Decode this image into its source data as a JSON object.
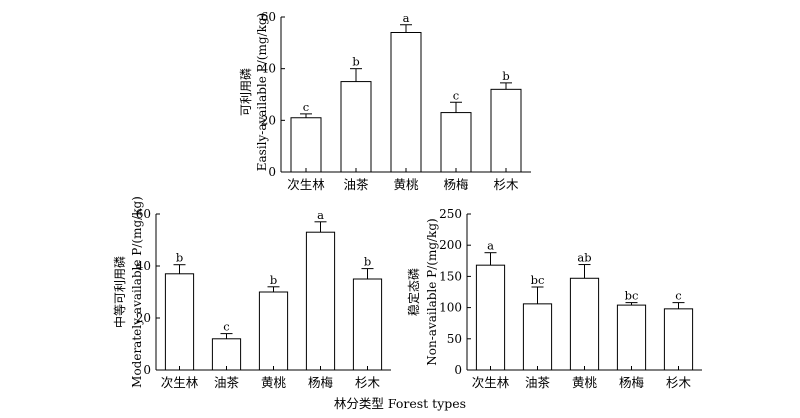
{
  "chart_data": [
    {
      "type": "bar",
      "categories": [
        "次生林",
        "油茶",
        "黄桃",
        "杨梅",
        "杉木"
      ],
      "values": [
        21,
        35,
        54,
        23,
        32
      ],
      "errors": [
        1.5,
        5,
        3,
        4,
        2.5
      ],
      "significance": [
        "c",
        "b",
        "a",
        "c",
        "b"
      ],
      "ylabel_cn": "可利用磷",
      "ylabel_en": "Easily-available P/(mg/kg)",
      "yticks": [
        0,
        20,
        40,
        60
      ],
      "ylim": [
        0,
        60
      ]
    },
    {
      "type": "bar",
      "categories": [
        "次生林",
        "油茶",
        "黄桃",
        "杨梅",
        "杉木"
      ],
      "values": [
        37,
        12,
        30,
        53,
        35
      ],
      "errors": [
        3.5,
        2,
        2,
        4,
        4
      ],
      "significance": [
        "b",
        "c",
        "b",
        "a",
        "b"
      ],
      "ylabel_cn": "中等可利用磷",
      "ylabel_en": "Moderately-available P/(mg/kg)",
      "yticks": [
        0,
        20,
        40,
        60
      ],
      "ylim": [
        0,
        60
      ]
    },
    {
      "type": "bar",
      "categories": [
        "次生林",
        "油茶",
        "黄桃",
        "杨梅",
        "杉木"
      ],
      "values": [
        168,
        106,
        147,
        104,
        98
      ],
      "errors": [
        20,
        27,
        22,
        4,
        10
      ],
      "significance": [
        "a",
        "bc",
        "ab",
        "bc",
        "c"
      ],
      "ylabel_cn": "稳定态磷",
      "ylabel_en": "Non-available P/(mg/kg)",
      "yticks": [
        0,
        50,
        100,
        150,
        200,
        250
      ],
      "ylim": [
        0,
        250
      ]
    }
  ],
  "xlabel": "林分类型  Forest types"
}
